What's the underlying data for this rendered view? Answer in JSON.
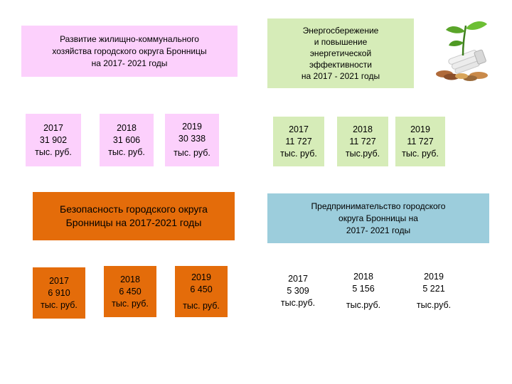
{
  "blocks": {
    "housing": {
      "title_lines": [
        "Развитие жилищно-коммунального",
        "хозяйства городского округа Бронницы",
        "на 2017- 2021 годы"
      ],
      "years": [
        {
          "lines": [
            "2017",
            "31 902",
            "тыс. руб."
          ]
        },
        {
          "lines": [
            "2018",
            "31 606",
            "тыс. руб."
          ]
        },
        {
          "lines": [
            "2019",
            "30 338",
            "тыс. руб."
          ]
        }
      ],
      "colors": {
        "header": "#fcd0fc",
        "cells": "#fcd0fc"
      }
    },
    "energy": {
      "title_lines": [
        "Энергосбережение",
        "и повышение",
        "энергетической",
        "эффективности",
        "на 2017 - 2021 годы"
      ],
      "years": [
        {
          "lines": [
            "2017",
            "11 727",
            "тыс. руб."
          ]
        },
        {
          "lines": [
            "2018",
            "11 727",
            "тыс.руб."
          ]
        },
        {
          "lines": [
            "2019",
            "11 727",
            "тыс. руб."
          ]
        }
      ],
      "colors": {
        "header": "#d6ecb8",
        "cells": "#d6ecb8"
      }
    },
    "safety": {
      "title_lines": [
        "Безопасность городского округа",
        "Бронницы на 2017-2021 годы"
      ],
      "years": [
        {
          "lines": [
            "2017",
            "6 910",
            "тыс. руб."
          ]
        },
        {
          "lines": [
            "2018",
            "6 450",
            "тыс. руб."
          ]
        },
        {
          "lines": [
            "2019",
            "6 450",
            "тыс. руб."
          ]
        }
      ],
      "colors": {
        "header": "#e46c0a",
        "cells": "#e46c0a"
      }
    },
    "business": {
      "title_lines": [
        "Предпринимательство городского",
        "округа Бронницы на",
        "2017- 2021 годы"
      ],
      "years": [
        {
          "lines": [
            "2017",
            "5 309",
            "тыс.руб."
          ]
        },
        {
          "lines": [
            "2018",
            "5 156",
            "тыс.руб."
          ]
        },
        {
          "lines": [
            "2019",
            "5 221",
            "тыс.руб."
          ]
        }
      ],
      "colors": {
        "header": "#9ccddc",
        "cells": "none"
      }
    }
  },
  "icons": {
    "plant": "plant-lightbulb-coins-icon"
  }
}
